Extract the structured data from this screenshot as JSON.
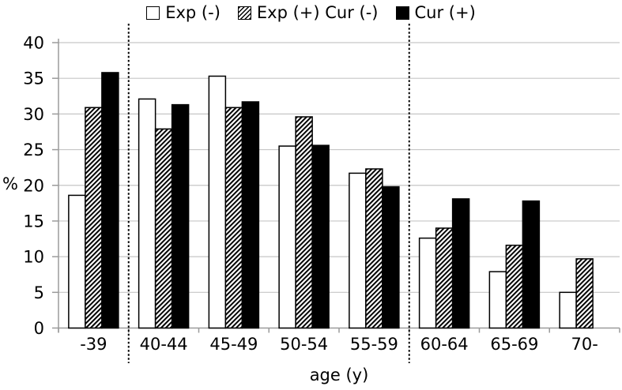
{
  "legend": {
    "items": [
      {
        "label": "Exp (-)",
        "swatch": "white"
      },
      {
        "label": "Exp (+) Cur (-)",
        "swatch": "hatch"
      },
      {
        "label": "Cur (+)",
        "swatch": "black"
      }
    ]
  },
  "chart_data": {
    "type": "bar",
    "title": "",
    "xlabel": "age (y)",
    "ylabel": "%",
    "ylim": [
      0,
      40
    ],
    "yticks": [
      0,
      5,
      10,
      15,
      20,
      25,
      30,
      35,
      40
    ],
    "grid": true,
    "legend_position": "top-center",
    "categories": [
      "-39",
      "40-44",
      "45-49",
      "50-54",
      "55-59",
      "60-64",
      "65-69",
      "70-"
    ],
    "series": [
      {
        "name": "Exp (-)",
        "style": "white",
        "values": [
          18.6,
          32.1,
          35.3,
          25.5,
          21.7,
          12.6,
          7.9,
          5.0
        ]
      },
      {
        "name": "Exp (+) Cur (-)",
        "style": "hatch",
        "values": [
          30.9,
          27.9,
          30.9,
          29.6,
          22.3,
          14.0,
          11.6,
          9.7
        ]
      },
      {
        "name": "Cur (+)",
        "style": "black",
        "values": [
          35.8,
          31.3,
          31.7,
          25.6,
          19.8,
          18.1,
          17.8,
          null
        ]
      }
    ],
    "dividers_after_categories": [
      "-39",
      "55-59"
    ]
  },
  "colors": {
    "background": "#ffffff",
    "bar_fill_white": "#ffffff",
    "bar_fill_black": "#000000",
    "bar_outline": "#000000",
    "hatch_stripe": "#000000",
    "gridline": "#c6c6c6",
    "axis_line": "#9b9b9b",
    "divider": "#000000",
    "text": "#000000"
  }
}
